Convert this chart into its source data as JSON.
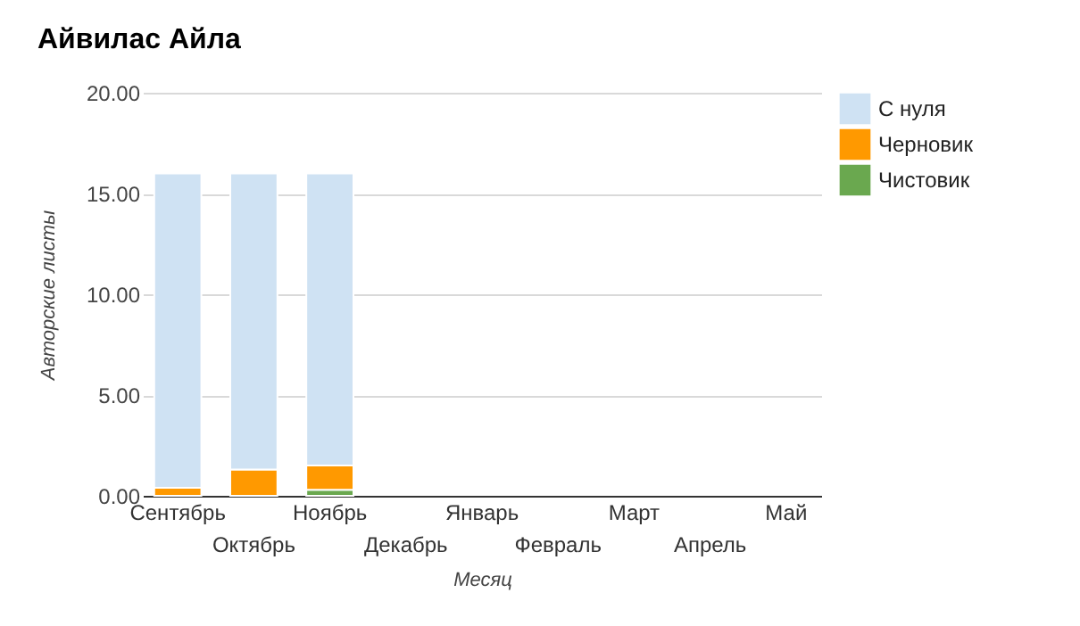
{
  "chart_data": {
    "type": "bar",
    "title": "Айвилас Айла",
    "xlabel": "Месяц",
    "ylabel": "Авторские листы",
    "stacked": true,
    "legend": "top right",
    "grid": "y",
    "categories": [
      "Сентябрь",
      "Октябрь",
      "Ноябрь",
      "Декабрь",
      "Январь",
      "Февраль",
      "Март",
      "Апрель",
      "Май"
    ],
    "ylim": [
      0,
      20
    ],
    "yticks": [
      {
        "value": 0,
        "label": "0.00"
      },
      {
        "value": 5,
        "label": "5.00"
      },
      {
        "value": 10,
        "label": "10.00"
      },
      {
        "value": 15,
        "label": "15.00"
      },
      {
        "value": 20,
        "label": "20.00"
      }
    ],
    "series": [
      {
        "name": "Чистовик",
        "color": "#6aa84f",
        "values": [
          0,
          0,
          0.3,
          null,
          null,
          null,
          null,
          null,
          null
        ]
      },
      {
        "name": "Черновик",
        "color": "#ff9900",
        "values": [
          0.4,
          1.3,
          1.2,
          null,
          null,
          null,
          null,
          null,
          null
        ]
      },
      {
        "name": "С нуля",
        "color": "#cfe2f3",
        "values": [
          15.6,
          14.7,
          14.5,
          null,
          null,
          null,
          null,
          null,
          null
        ]
      }
    ]
  }
}
